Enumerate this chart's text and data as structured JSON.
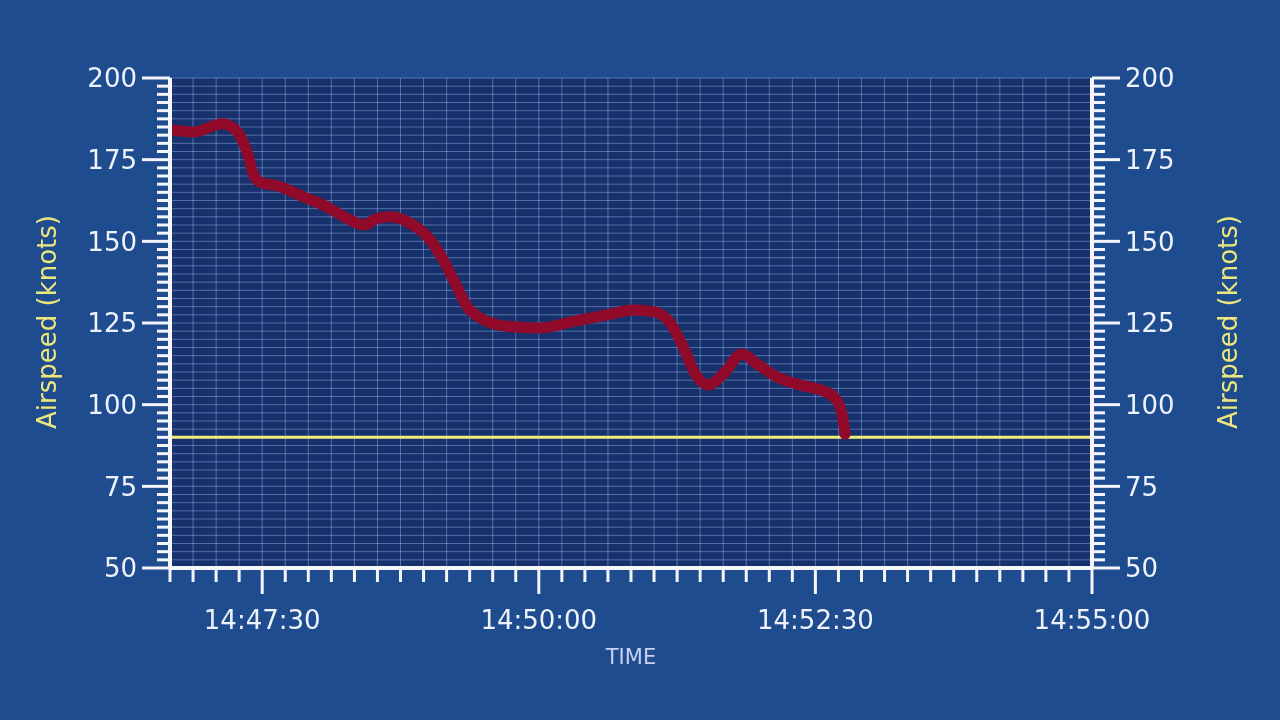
{
  "chart_data": {
    "type": "line",
    "xlabel": "TIME",
    "ylabel": "Airspeed (knots)",
    "y2label": "Airspeed (knots)",
    "x": [
      14.77839,
      14.78142,
      14.78567,
      14.78794,
      14.78944,
      14.79044,
      14.79144,
      14.79394,
      14.79747,
      14.80147,
      14.8045,
      14.80697,
      14.809,
      14.811,
      14.81353,
      14.81653,
      14.81903,
      14.82053,
      14.8215,
      14.82256,
      14.82456,
      14.82856,
      14.83358,
      14.83858,
      14.84361,
      14.84761,
      14.85061,
      14.85314,
      14.85514,
      14.85675,
      14.85889,
      14.86117,
      14.86392,
      14.86619,
      14.86919,
      14.87269,
      14.87572,
      14.87772,
      14.87897,
      14.87947
    ],
    "series": [
      {
        "color": "#920a2a",
        "values": [
          184,
          183.5,
          186,
          183.5,
          177,
          170,
          168,
          167,
          164,
          160.5,
          157,
          155,
          157,
          157.5,
          156,
          151.5,
          144,
          138,
          134,
          130,
          126.5,
          124,
          123.5,
          125.5,
          127.5,
          129,
          128.5,
          125,
          117.5,
          110,
          106,
          109.5,
          115.5,
          112.5,
          108.5,
          106,
          104.5,
          102.5,
          97.5,
          91
        ]
      }
    ],
    "xlim": [
      14.777778,
      14.916667
    ],
    "xticks": [
      {
        "value": 14.777778,
        "label": null
      },
      {
        "value": 14.78125,
        "label": null
      },
      {
        "value": 14.784722,
        "label": null
      },
      {
        "value": 14.788194,
        "label": null
      },
      {
        "value": 14.791667,
        "label": "14:47:30"
      },
      {
        "value": 14.795139,
        "label": null
      },
      {
        "value": 14.798611,
        "label": null
      },
      {
        "value": 14.802083,
        "label": null
      },
      {
        "value": 14.805556,
        "label": null
      },
      {
        "value": 14.809028,
        "label": null
      },
      {
        "value": 14.8125,
        "label": null
      },
      {
        "value": 14.815972,
        "label": null
      },
      {
        "value": 14.819444,
        "label": null
      },
      {
        "value": 14.822917,
        "label": null
      },
      {
        "value": 14.826389,
        "label": null
      },
      {
        "value": 14.829861,
        "label": null
      },
      {
        "value": 14.833333,
        "label": "14:50:00"
      },
      {
        "value": 14.836806,
        "label": null
      },
      {
        "value": 14.840278,
        "label": null
      },
      {
        "value": 14.84375,
        "label": null
      },
      {
        "value": 14.847222,
        "label": null
      },
      {
        "value": 14.850694,
        "label": null
      },
      {
        "value": 14.854167,
        "label": null
      },
      {
        "value": 14.857639,
        "label": null
      },
      {
        "value": 14.861111,
        "label": null
      },
      {
        "value": 14.864583,
        "label": null
      },
      {
        "value": 14.868056,
        "label": null
      },
      {
        "value": 14.871528,
        "label": null
      },
      {
        "value": 14.875,
        "label": "14:52:30"
      },
      {
        "value": 14.878472,
        "label": null
      },
      {
        "value": 14.881944,
        "label": null
      },
      {
        "value": 14.885417,
        "label": null
      },
      {
        "value": 14.888889,
        "label": null
      },
      {
        "value": 14.892361,
        "label": null
      },
      {
        "value": 14.895833,
        "label": null
      },
      {
        "value": 14.899306,
        "label": null
      },
      {
        "value": 14.902778,
        "label": null
      },
      {
        "value": 14.90625,
        "label": null
      },
      {
        "value": 14.909722,
        "label": null
      },
      {
        "value": 14.913194,
        "label": null
      },
      {
        "value": 14.916667,
        "label": "14:55:00"
      }
    ],
    "ylim": [
      50,
      200
    ],
    "yticks": [
      50,
      {
        "value": 52.5,
        "label": null
      },
      {
        "value": 55,
        "label": null
      },
      {
        "value": 57.5,
        "label": null
      },
      {
        "value": 60,
        "label": null
      },
      {
        "value": 62.5,
        "label": null
      },
      {
        "value": 65,
        "label": null
      },
      {
        "value": 67.5,
        "label": null
      },
      {
        "value": 70,
        "label": null
      },
      {
        "value": 72.5,
        "label": null
      },
      75,
      {
        "value": 77.5,
        "label": null
      },
      {
        "value": 80,
        "label": null
      },
      {
        "value": 82.5,
        "label": null
      },
      {
        "value": 85,
        "label": null
      },
      {
        "value": 87.5,
        "label": null
      },
      {
        "value": 90,
        "label": null
      },
      {
        "value": 92.5,
        "label": null
      },
      {
        "value": 95,
        "label": null
      },
      {
        "value": 97.5,
        "label": null
      },
      100,
      {
        "value": 102.5,
        "label": null
      },
      {
        "value": 105,
        "label": null
      },
      {
        "value": 107.5,
        "label": null
      },
      {
        "value": 110,
        "label": null
      },
      {
        "value": 112.5,
        "label": null
      },
      {
        "value": 115,
        "label": null
      },
      {
        "value": 117.5,
        "label": null
      },
      {
        "value": 120,
        "label": null
      },
      {
        "value": 122.5,
        "label": null
      },
      125,
      {
        "value": 127.5,
        "label": null
      },
      {
        "value": 130,
        "label": null
      },
      {
        "value": 132.5,
        "label": null
      },
      {
        "value": 135,
        "label": null
      },
      {
        "value": 137.5,
        "label": null
      },
      {
        "value": 140,
        "label": null
      },
      {
        "value": 142.5,
        "label": null
      },
      {
        "value": 145,
        "label": null
      },
      {
        "value": 147.5,
        "label": null
      },
      150,
      {
        "value": 152.5,
        "label": null
      },
      {
        "value": 155,
        "label": null
      },
      {
        "value": 157.5,
        "label": null
      },
      {
        "value": 160,
        "label": null
      },
      {
        "value": 162.5,
        "label": null
      },
      {
        "value": 165,
        "label": null
      },
      {
        "value": 167.5,
        "label": null
      },
      {
        "value": 170,
        "label": null
      },
      {
        "value": 172.5,
        "label": null
      },
      175,
      {
        "value": 177.5,
        "label": null
      },
      {
        "value": 180,
        "label": null
      },
      {
        "value": 182.5,
        "label": null
      },
      {
        "value": 185,
        "label": null
      },
      {
        "value": 187.5,
        "label": null
      },
      {
        "value": 190,
        "label": null
      },
      {
        "value": 192.5,
        "label": null
      },
      {
        "value": 195,
        "label": null
      },
      {
        "value": 197.5,
        "label": null
      },
      200
    ],
    "y2lim": [
      50,
      200
    ],
    "y2ticks": [
      50,
      {
        "value": 52.5,
        "label": null
      },
      {
        "value": 55,
        "label": null
      },
      {
        "value": 57.5,
        "label": null
      },
      {
        "value": 60,
        "label": null
      },
      {
        "value": 62.5,
        "label": null
      },
      {
        "value": 65,
        "label": null
      },
      {
        "value": 67.5,
        "label": null
      },
      {
        "value": 70,
        "label": null
      },
      {
        "value": 72.5,
        "label": null
      },
      75,
      {
        "value": 77.5,
        "label": null
      },
      {
        "value": 80,
        "label": null
      },
      {
        "value": 82.5,
        "label": null
      },
      {
        "value": 85,
        "label": null
      },
      {
        "value": 87.5,
        "label": null
      },
      {
        "value": 90,
        "label": null
      },
      {
        "value": 92.5,
        "label": null
      },
      {
        "value": 95,
        "label": null
      },
      {
        "value": 97.5,
        "label": null
      },
      100,
      {
        "value": 102.5,
        "label": null
      },
      {
        "value": 105,
        "label": null
      },
      {
        "value": 107.5,
        "label": null
      },
      {
        "value": 110,
        "label": null
      },
      {
        "value": 112.5,
        "label": null
      },
      {
        "value": 115,
        "label": null
      },
      {
        "value": 117.5,
        "label": null
      },
      {
        "value": 120,
        "label": null
      },
      {
        "value": 122.5,
        "label": null
      },
      125,
      {
        "value": 127.5,
        "label": null
      },
      {
        "value": 130,
        "label": null
      },
      {
        "value": 132.5,
        "label": null
      },
      {
        "value": 135,
        "label": null
      },
      {
        "value": 137.5,
        "label": null
      },
      {
        "value": 140,
        "label": null
      },
      {
        "value": 142.5,
        "label": null
      },
      {
        "value": 145,
        "label": null
      },
      {
        "value": 147.5,
        "label": null
      },
      150,
      {
        "value": 152.5,
        "label": null
      },
      {
        "value": 155,
        "label": null
      },
      {
        "value": 157.5,
        "label": null
      },
      {
        "value": 160,
        "label": null
      },
      {
        "value": 162.5,
        "label": null
      },
      {
        "value": 165,
        "label": null
      },
      {
        "value": 167.5,
        "label": null
      },
      {
        "value": 170,
        "label": null
      },
      {
        "value": 172.5,
        "label": null
      },
      175,
      {
        "value": 177.5,
        "label": null
      },
      {
        "value": 180,
        "label": null
      },
      {
        "value": 182.5,
        "label": null
      },
      {
        "value": 185,
        "label": null
      },
      {
        "value": 187.5,
        "label": null
      },
      {
        "value": 190,
        "label": null
      },
      {
        "value": 192.5,
        "label": null
      },
      {
        "value": 195,
        "label": null
      },
      {
        "value": 197.5,
        "label": null
      },
      200
    ],
    "ref_lines": [
      {
        "axis": "y",
        "value": 90,
        "color": "#f2ee7a"
      }
    ],
    "grid": true
  }
}
